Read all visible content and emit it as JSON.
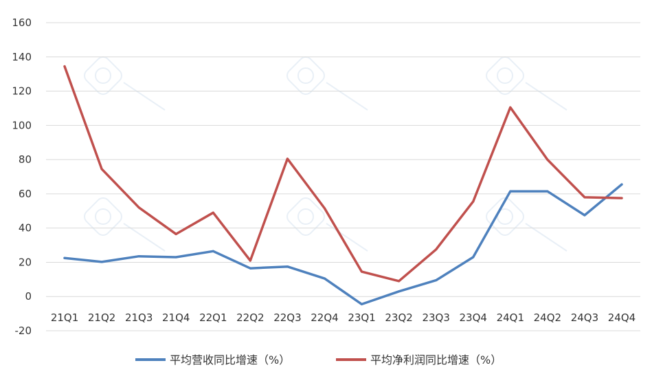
{
  "chart_data": {
    "type": "line",
    "categories": [
      "21Q1",
      "21Q2",
      "21Q3",
      "21Q4",
      "22Q1",
      "22Q2",
      "22Q3",
      "22Q4",
      "23Q1",
      "23Q2",
      "23Q3",
      "23Q4",
      "24Q1",
      "24Q2",
      "24Q3",
      "24Q4"
    ],
    "series": [
      {
        "name": "平均营收同比增速（%）",
        "color": "#4e81bd",
        "values": [
          22.5,
          20.2,
          23.5,
          23.0,
          26.5,
          16.5,
          17.5,
          10.5,
          -4.5,
          3.0,
          9.5,
          23.0,
          61.5,
          61.5,
          47.5,
          65.5
        ]
      },
      {
        "name": "平均净利润同比增速（%）",
        "color": "#c0504d",
        "values": [
          134.5,
          74.5,
          52.0,
          36.5,
          49.0,
          21.0,
          80.5,
          51.5,
          14.5,
          9.0,
          27.5,
          55.5,
          110.5,
          80.0,
          58.0,
          57.5
        ]
      }
    ],
    "yticks": [
      160,
      140,
      120,
      100,
      80,
      60,
      40,
      20,
      0,
      -20
    ],
    "ylim": [
      -20,
      160
    ],
    "grid": true,
    "legend_position": "bottom"
  }
}
